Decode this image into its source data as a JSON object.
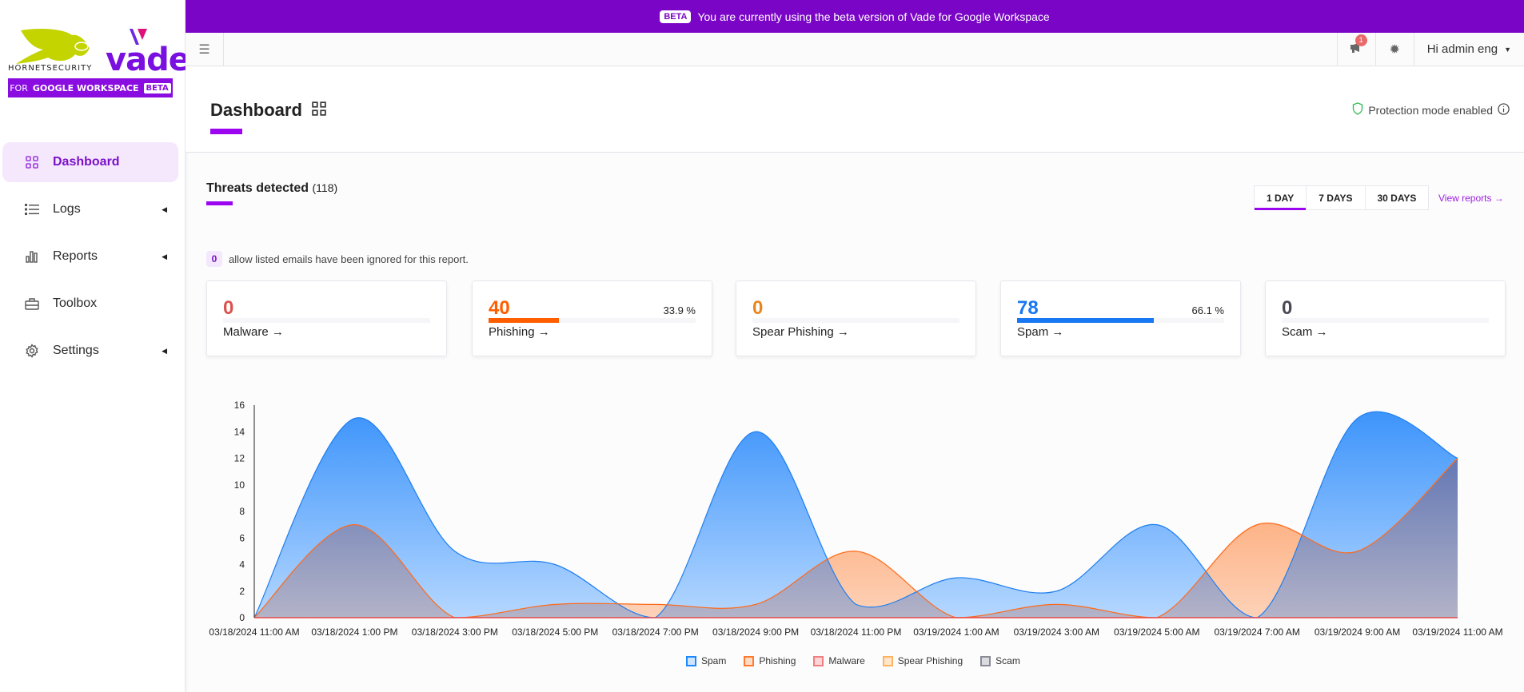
{
  "logo": {
    "brand1": "HORNETSECURITY",
    "brand2": "vade",
    "subtitle_pre": "FOR",
    "subtitle": "GOOGLE WORKSPACE",
    "beta": "BETA"
  },
  "banner": {
    "badge": "BETA",
    "text": "You are currently using the beta version of Vade for Google Workspace"
  },
  "topbar": {
    "notifications": "1",
    "user": "Hi admin eng"
  },
  "sidebar": {
    "items": [
      {
        "label": "Dashboard",
        "icon": "grid-icon",
        "active": true
      },
      {
        "label": "Logs",
        "icon": "list-icon",
        "caret": true
      },
      {
        "label": "Reports",
        "icon": "bar-chart-icon",
        "caret": true
      },
      {
        "label": "Toolbox",
        "icon": "toolbox-icon"
      },
      {
        "label": "Settings",
        "icon": "gear-icon",
        "caret": true
      }
    ]
  },
  "header": {
    "title": "Dashboard",
    "protection": "Protection mode enabled"
  },
  "threats": {
    "title": "Threats detected",
    "count": "(118)",
    "tabs": [
      "1 DAY",
      "7 DAYS",
      "30 DAYS"
    ],
    "active_tab": "1 DAY",
    "view_reports": "View reports →",
    "allow_count": "0",
    "allow_text": "allow listed emails have been ignored for this report."
  },
  "cards": [
    {
      "value": "0",
      "label": "Malware →",
      "color": "#d9534f",
      "percent": null,
      "fraction": 0
    },
    {
      "value": "40",
      "label": "Phishing →",
      "color": "#ff5e00",
      "percent": "33.9 %",
      "fraction": 0.339
    },
    {
      "value": "0",
      "label": "Spear Phishing →",
      "color": "#e8871e",
      "percent": null,
      "fraction": 0
    },
    {
      "value": "78",
      "label": "Spam →",
      "color": "#1877f2",
      "percent": "66.1 %",
      "fraction": 0.661
    },
    {
      "value": "0",
      "label": "Scam →",
      "color": "#4a4a55",
      "percent": null,
      "fraction": 0
    }
  ],
  "chart_data": {
    "type": "area",
    "categories": [
      "03/18/2024 11:00 AM",
      "03/18/2024 1:00 PM",
      "03/18/2024 3:00 PM",
      "03/18/2024 5:00 PM",
      "03/18/2024 7:00 PM",
      "03/18/2024 9:00 PM",
      "03/18/2024 11:00 PM",
      "03/19/2024 1:00 AM",
      "03/19/2024 3:00 AM",
      "03/19/2024 5:00 AM",
      "03/19/2024 7:00 AM",
      "03/19/2024 9:00 AM",
      "03/19/2024 11:00 AM"
    ],
    "series": [
      {
        "name": "Spam",
        "color": "#1e88ff",
        "values": [
          0,
          15,
          5,
          4,
          0,
          14,
          1,
          3,
          2,
          7,
          0,
          15,
          12
        ]
      },
      {
        "name": "Phishing",
        "color": "#ff7a2e",
        "values": [
          0,
          7,
          0,
          1,
          1,
          1,
          5,
          0,
          1,
          0,
          7,
          5,
          12
        ]
      },
      {
        "name": "Malware",
        "color": "#f08080",
        "values": [
          0,
          0,
          0,
          0,
          0,
          0,
          0,
          0,
          0,
          0,
          0,
          0,
          0
        ]
      },
      {
        "name": "Spear Phishing",
        "color": "#ffb260",
        "values": [
          0,
          0,
          0,
          0,
          0,
          0,
          0,
          0,
          0,
          0,
          0,
          0,
          0
        ]
      },
      {
        "name": "Scam",
        "color": "#8a8a96",
        "values": [
          0,
          0,
          0,
          0,
          0,
          0,
          0,
          0,
          0,
          0,
          0,
          0,
          0
        ]
      }
    ],
    "yticks": [
      0,
      2,
      4,
      6,
      8,
      10,
      12,
      14,
      16
    ],
    "ylim": [
      0,
      16
    ],
    "legend": "bottom",
    "grid": false
  }
}
